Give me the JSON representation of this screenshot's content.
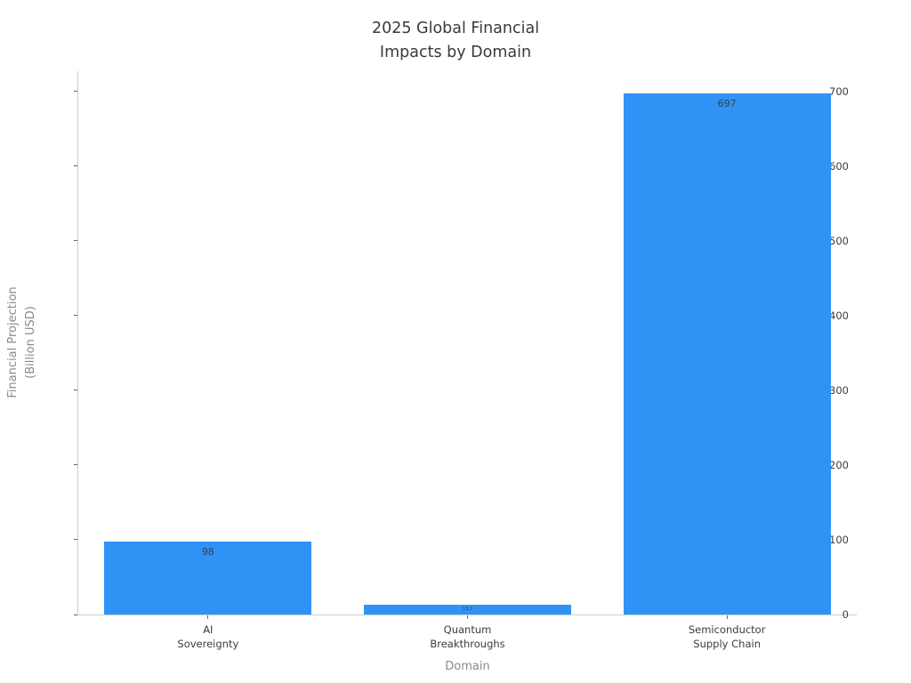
{
  "figure": {
    "background": "#ffffff"
  },
  "chart_data": {
    "type": "bar",
    "title": "2025 Global Financial\nImpacts by Domain",
    "categories": [
      "AI\nSovereignty",
      "Quantum\nBreakthroughs",
      "Semiconductor\nSupply Chain"
    ],
    "values": [
      98,
      13.3,
      697
    ],
    "bar_labels": [
      "98",
      "13.3",
      "697"
    ],
    "xlabel": "Domain",
    "ylabel": "Financial Projection\n(Billion USD)",
    "ylim": [
      0,
      727
    ],
    "yticks": [
      0,
      100,
      200,
      300,
      400,
      500,
      600,
      700
    ],
    "grid": false,
    "legend": null,
    "bar_color": "#2E93F5",
    "colors": {
      "bar": "#2E93F5",
      "spine": "#cccccc",
      "tick_label": "#3c3c3c",
      "axis_title": "#8a8a8a",
      "chart_title": "#3a3a3a",
      "bar_value_label": "#37404a"
    }
  }
}
